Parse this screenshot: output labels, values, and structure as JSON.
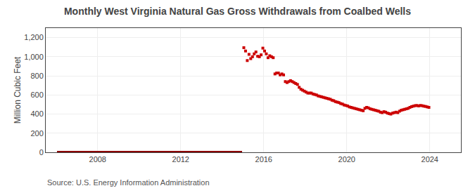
{
  "chart_data": {
    "type": "scatter",
    "title": "Monthly West Virginia Natural Gas Gross Withdrawals from Coalbed Wells",
    "ylabel": "Million Cubic Feet",
    "annotations": [
      "Source: U.S. Energy Information Administration"
    ],
    "xlim": [
      2005.5,
      2025.5
    ],
    "xticks": [
      2008,
      2012,
      2016,
      2020,
      2024
    ],
    "ylim": [
      0,
      1300
    ],
    "yticks": [
      0,
      200,
      400,
      600,
      800,
      {
        "value": 1000,
        "label": "1,000"
      },
      {
        "value": 1200,
        "label": "1,200"
      }
    ],
    "grid": true,
    "series": [
      {
        "type": "line",
        "color": "#8b0000",
        "line_style": "solid",
        "x": [
          2006.0416666666667,
          2006.125,
          2006.2083333333333,
          2006.2916666666667,
          2006.375,
          2006.4583333333333,
          2006.5416666666667,
          2006.625,
          2006.7083333333333,
          2006.7916666666667,
          2006.875,
          2006.9583333333333,
          2007.0416666666667,
          2007.125,
          2007.2083333333333,
          2007.2916666666667,
          2007.375,
          2007.4583333333333,
          2007.5416666666667,
          2007.625,
          2007.7083333333333,
          2007.7916666666667,
          2007.875,
          2007.9583333333333,
          2008.0416666666667,
          2008.125,
          2008.2083333333333,
          2008.2916666666667,
          2008.375,
          2008.4583333333333,
          2008.5416666666667,
          2008.625,
          2008.7083333333333,
          2008.7916666666667,
          2008.875,
          2008.9583333333333,
          2009.0416666666667,
          2009.125,
          2009.2083333333333,
          2009.2916666666667,
          2009.375,
          2009.4583333333333,
          2009.5416666666667,
          2009.625,
          2009.7083333333333,
          2009.7916666666667,
          2009.875,
          2009.9583333333333,
          2010.0416666666667,
          2010.125,
          2010.2083333333333,
          2010.2916666666667,
          2010.375,
          2010.4583333333333,
          2010.5416666666667,
          2010.625,
          2010.7083333333333,
          2010.7916666666667,
          2010.875,
          2010.9583333333333,
          2011.0416666666667,
          2011.125,
          2011.2083333333333,
          2011.2916666666667,
          2011.375,
          2011.4583333333333,
          2011.5416666666667,
          2011.625,
          2011.7083333333333,
          2011.7916666666667,
          2011.875,
          2011.9583333333333,
          2012.0416666666667,
          2012.125,
          2012.2083333333333,
          2012.2916666666667,
          2012.375,
          2012.4583333333333,
          2012.5416666666667,
          2012.625,
          2012.7083333333333,
          2012.7916666666667,
          2012.875,
          2012.9583333333333,
          2013.0416666666667,
          2013.125,
          2013.2083333333333,
          2013.2916666666667,
          2013.375,
          2013.4583333333333,
          2013.5416666666667,
          2013.625,
          2013.7083333333333,
          2013.7916666666667,
          2013.875,
          2013.9583333333333,
          2014.0416666666667,
          2014.125,
          2014.2083333333333,
          2014.2916666666667,
          2014.375,
          2014.4583333333333,
          2014.5416666666667,
          2014.625,
          2014.7083333333333,
          2014.7916666666667,
          2014.875,
          2014.9583333333333
        ],
        "values": [
          2,
          2,
          2,
          2,
          2,
          2,
          2,
          2,
          2,
          2,
          2,
          2,
          2,
          2,
          2,
          2,
          2,
          2,
          2,
          2,
          2,
          2,
          2,
          2,
          2,
          2,
          2,
          2,
          2,
          2,
          2,
          2,
          2,
          2,
          2,
          2,
          2,
          2,
          2,
          2,
          2,
          2,
          2,
          2,
          2,
          2,
          2,
          2,
          2,
          2,
          2,
          2,
          2,
          2,
          2,
          2,
          2,
          2,
          2,
          2,
          2,
          2,
          2,
          2,
          2,
          2,
          2,
          2,
          2,
          2,
          2,
          2,
          2,
          2,
          2,
          2,
          2,
          2,
          2,
          2,
          2,
          2,
          2,
          2,
          2,
          2,
          2,
          2,
          2,
          2,
          2,
          2,
          2,
          2,
          2,
          2,
          2,
          2,
          2,
          2,
          2,
          2,
          2,
          2,
          2,
          2,
          2,
          2
        ]
      },
      {
        "type": "scatter",
        "color": "#cc0000",
        "marker": "square",
        "x": [
          2015.0416666666667,
          2015.125,
          2015.2083333333333,
          2015.2916666666667,
          2015.375,
          2015.4583333333333,
          2015.5416666666667,
          2015.625,
          2015.7083333333333,
          2015.7916666666667,
          2015.875,
          2015.9583333333333,
          2016.0416666666667,
          2016.125,
          2016.2083333333333,
          2016.2916666666667,
          2016.375,
          2016.4583333333333,
          2016.5416666666667,
          2016.625,
          2016.7083333333333,
          2016.7916666666667,
          2016.875,
          2016.9583333333333,
          2017.0416666666667,
          2017.125,
          2017.2083333333333,
          2017.2916666666667,
          2017.375,
          2017.4583333333333,
          2017.5416666666667,
          2017.625,
          2017.7083333333333,
          2017.7916666666667,
          2017.875,
          2017.9583333333333,
          2018.0416666666667,
          2018.125,
          2018.2083333333333,
          2018.2916666666667,
          2018.375,
          2018.4583333333333,
          2018.5416666666667,
          2018.625,
          2018.7083333333333,
          2018.7916666666667,
          2018.875,
          2018.9583333333333,
          2019.0416666666667,
          2019.125,
          2019.2083333333333,
          2019.2916666666667,
          2019.375,
          2019.4583333333333,
          2019.5416666666667,
          2019.625,
          2019.7083333333333,
          2019.7916666666667,
          2019.875,
          2019.9583333333333,
          2020.0416666666667,
          2020.125,
          2020.2083333333333,
          2020.2916666666667,
          2020.375,
          2020.4583333333333,
          2020.5416666666667,
          2020.625,
          2020.7083333333333,
          2020.7916666666667,
          2020.875,
          2020.9583333333333,
          2021.0416666666667,
          2021.125,
          2021.2083333333333,
          2021.2916666666667,
          2021.375,
          2021.4583333333333,
          2021.5416666666667,
          2021.625,
          2021.7083333333333,
          2021.7916666666667,
          2021.875,
          2021.9583333333333,
          2022.0416666666667,
          2022.125,
          2022.2083333333333,
          2022.2916666666667,
          2022.375,
          2022.4583333333333,
          2022.5416666666667,
          2022.625,
          2022.7083333333333,
          2022.7916666666667,
          2022.875,
          2022.9583333333333,
          2023.0416666666667,
          2023.125,
          2023.2083333333333,
          2023.2916666666667,
          2023.375,
          2023.4583333333333,
          2023.5416666666667,
          2023.625,
          2023.7083333333333,
          2023.7916666666667,
          2023.875,
          2023.9583333333333
        ],
        "values": [
          1095,
          1060,
          960,
          1025,
          980,
          1000,
          1030,
          1050,
          1005,
          1000,
          1020,
          1090,
          1060,
          1030,
          990,
          1010,
          1000,
          990,
          820,
          830,
          830,
          810,
          820,
          810,
          740,
          730,
          740,
          750,
          740,
          730,
          720,
          710,
          680,
          660,
          650,
          640,
          630,
          620,
          620,
          620,
          610,
          605,
          600,
          590,
          585,
          580,
          575,
          570,
          565,
          560,
          555,
          545,
          540,
          530,
          525,
          520,
          510,
          505,
          495,
          490,
          485,
          475,
          470,
          465,
          460,
          455,
          450,
          445,
          440,
          435,
          460,
          470,
          465,
          455,
          450,
          445,
          440,
          435,
          430,
          420,
          415,
          425,
          420,
          410,
          405,
          400,
          410,
          415,
          420,
          415,
          430,
          440,
          445,
          450,
          455,
          460,
          470,
          478,
          483,
          488,
          490,
          485,
          490,
          488,
          483,
          480,
          475,
          470
        ]
      }
    ]
  }
}
